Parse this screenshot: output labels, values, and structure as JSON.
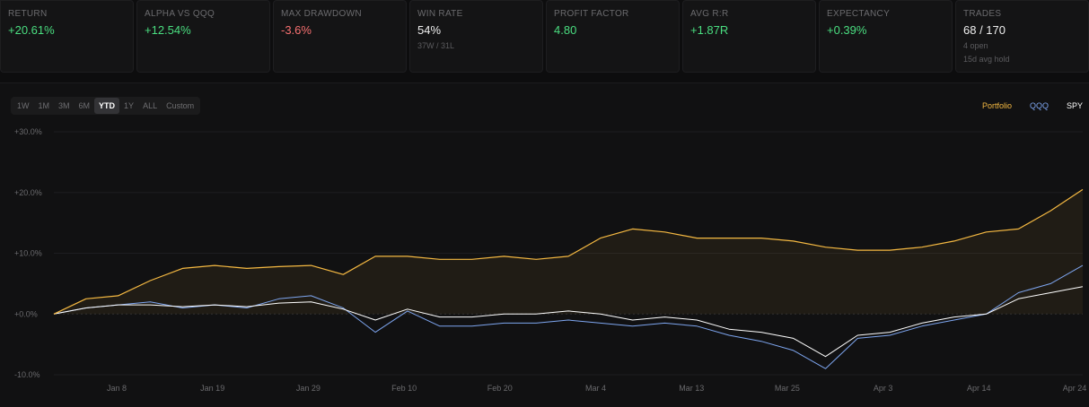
{
  "stats": [
    {
      "label": "RETURN",
      "value": "+20.61%",
      "tone": "pos",
      "sub": "",
      "sub2": ""
    },
    {
      "label": "ALPHA VS QQQ",
      "value": "+12.54%",
      "tone": "pos",
      "sub": "",
      "sub2": ""
    },
    {
      "label": "MAX DRAWDOWN",
      "value": "-3.6%",
      "tone": "neg",
      "sub": "",
      "sub2": ""
    },
    {
      "label": "WIN RATE",
      "value": "54%",
      "tone": "neutral",
      "sub": "37W / 31L",
      "sub2": ""
    },
    {
      "label": "PROFIT FACTOR",
      "value": "4.80",
      "tone": "pos",
      "sub": "",
      "sub2": ""
    },
    {
      "label": "AVG R:R",
      "value": "+1.87R",
      "tone": "pos",
      "sub": "",
      "sub2": ""
    },
    {
      "label": "EXPECTANCY",
      "value": "+0.39%",
      "tone": "pos",
      "sub": "",
      "sub2": ""
    },
    {
      "label": "TRADES",
      "value": "68 / 170",
      "tone": "neutral",
      "sub": "4 open",
      "sub2": "15d avg hold"
    }
  ],
  "range_tabs": {
    "items": [
      "1W",
      "1M",
      "3M",
      "6M",
      "YTD",
      "1Y",
      "ALL",
      "Custom"
    ],
    "active": "YTD"
  },
  "legend": [
    {
      "name": "Portfolio",
      "color": "#f5b942"
    },
    {
      "name": "QQQ",
      "color": "#7ea6f0"
    },
    {
      "name": "SPY",
      "color": "#ffffff"
    }
  ],
  "chart_data": {
    "type": "line",
    "title": "",
    "xlabel": "",
    "ylabel": "",
    "x_ticks": [
      "Jan 8",
      "Jan 19",
      "Jan 29",
      "Feb 10",
      "Feb 20",
      "Mar 4",
      "Mar 13",
      "Mar 25",
      "Apr 3",
      "Apr 14",
      "Apr 24"
    ],
    "y_ticks": [
      "+30.0%",
      "+20.0%",
      "+10.0%",
      "+0.0%",
      "-10.0%"
    ],
    "ylim": [
      -10,
      30
    ],
    "grid": true,
    "x": [
      "Jan 2",
      "Jan 5",
      "Jan 8",
      "Jan 12",
      "Jan 16",
      "Jan 19",
      "Jan 23",
      "Jan 26",
      "Jan 29",
      "Feb 2",
      "Feb 5",
      "Feb 10",
      "Feb 13",
      "Feb 17",
      "Feb 20",
      "Feb 25",
      "Feb 28",
      "Mar 4",
      "Mar 7",
      "Mar 10",
      "Mar 13",
      "Mar 17",
      "Mar 20",
      "Mar 25",
      "Mar 28",
      "Mar 31",
      "Apr 3",
      "Apr 7",
      "Apr 10",
      "Apr 14",
      "Apr 17",
      "Apr 21",
      "Apr 24"
    ],
    "series": [
      {
        "name": "Portfolio",
        "color": "#f5b942",
        "values": [
          0,
          2.5,
          3,
          5.5,
          7.5,
          8,
          7.5,
          7.8,
          8,
          6.5,
          9.5,
          9.5,
          9,
          9,
          9.5,
          9,
          9.5,
          12.5,
          14,
          13.5,
          12.5,
          12.5,
          12.5,
          12,
          11,
          10.5,
          10.5,
          11,
          12,
          13.5,
          14,
          17,
          20.5
        ]
      },
      {
        "name": "QQQ",
        "color": "#7ea6f0",
        "values": [
          0,
          1,
          1.5,
          2,
          1,
          1.5,
          1,
          2.5,
          3,
          1,
          -3,
          0.5,
          -2,
          -2,
          -1.5,
          -1.5,
          -1,
          -1.5,
          -2,
          -1.5,
          -2,
          -3.5,
          -4.5,
          -6,
          -9,
          -4,
          -3.5,
          -2,
          -1,
          0,
          3.5,
          5,
          8
        ]
      },
      {
        "name": "SPY",
        "color": "#ffffff",
        "values": [
          0,
          1,
          1.5,
          1.5,
          1.2,
          1.5,
          1.2,
          1.8,
          2,
          0.8,
          -1,
          0.8,
          -0.5,
          -0.5,
          0,
          0,
          0.5,
          0,
          -1,
          -0.5,
          -1,
          -2.5,
          -3,
          -4,
          -7,
          -3.5,
          -3,
          -1.5,
          -0.5,
          0,
          2.5,
          3.5,
          4.5
        ]
      }
    ]
  }
}
